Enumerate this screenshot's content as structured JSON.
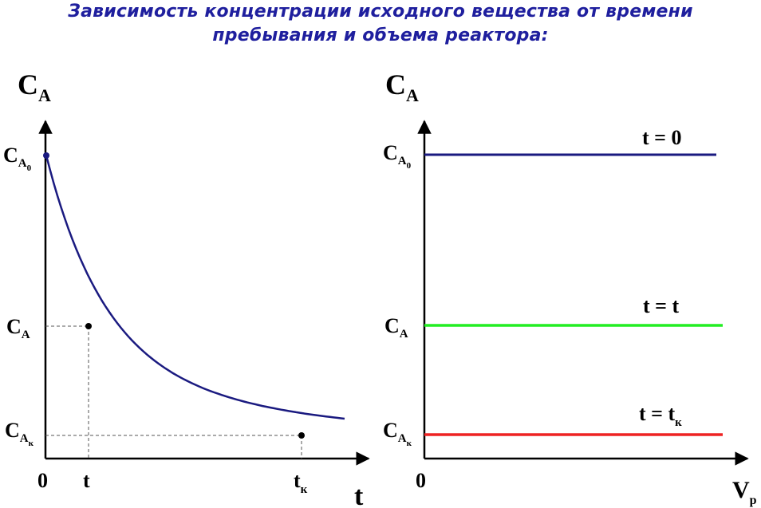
{
  "title": {
    "line1": "Зависимость концентрации исходного вещества от времени",
    "line2": "пребывания и объема реактора:"
  },
  "colors": {
    "curve": "#1a1a80",
    "line_t0": "#1a1a80",
    "line_t": "#22ee22",
    "line_tk": "#ee2222",
    "title": "#1f1f9e"
  },
  "left_plot": {
    "y_axis": {
      "main": "C",
      "sub": "A"
    },
    "x_axis": "t",
    "y_ticks": [
      {
        "main": "C",
        "sub": "A",
        "subsub": "0"
      },
      {
        "main": "C",
        "sub": "A",
        "subsub": ""
      },
      {
        "main": "C",
        "sub": "A",
        "subsub": "к"
      }
    ],
    "x_ticks": [
      {
        "main": "0",
        "sub": ""
      },
      {
        "main": "t",
        "sub": ""
      },
      {
        "main": "t",
        "sub": "к"
      }
    ]
  },
  "right_plot": {
    "y_axis": {
      "main": "C",
      "sub": "A"
    },
    "x_axis": {
      "main": "V",
      "sub": "р"
    },
    "origin": "0",
    "y_ticks": [
      {
        "main": "C",
        "sub": "A",
        "subsub": "0"
      },
      {
        "main": "C",
        "sub": "A",
        "subsub": ""
      },
      {
        "main": "C",
        "sub": "A",
        "subsub": "к"
      }
    ],
    "lines": [
      {
        "main": "t = 0",
        "sub": "",
        "color": "#1a1a80"
      },
      {
        "main": "t = t",
        "sub": "",
        "color": "#22ee22"
      },
      {
        "main": "t = t",
        "sub": "к",
        "color": "#ee2222"
      }
    ]
  }
}
